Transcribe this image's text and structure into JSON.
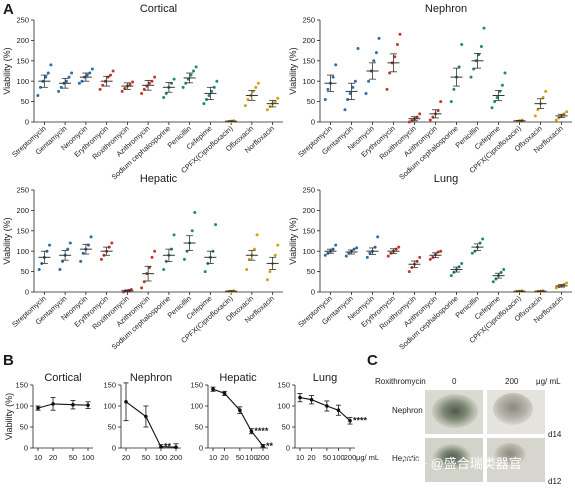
{
  "panels": {
    "a": "A",
    "b": "B",
    "c": "C"
  },
  "drug_colors": [
    "#2c6fa6",
    "#2c6fa6",
    "#2c6fa6",
    "#c0392b",
    "#c0392b",
    "#c0392b",
    "#1f8a7a",
    "#1f8a7a",
    "#1f8a7a",
    "#d4a017",
    "#d4a017",
    "#d4a017"
  ],
  "chart_data": [
    {
      "id": "A-cortical",
      "type": "scatter",
      "title": "Cortical",
      "ylabel": "Viability (%)",
      "ylim": [
        0,
        250
      ],
      "yticks": [
        0,
        50,
        100,
        150,
        200,
        250
      ],
      "categories": [
        "Streptomycin",
        "Gentamycin",
        "Neomycin",
        "Erythromycin",
        "Roxithromycin",
        "Azithromycin",
        "Sodium cephalosporine",
        "Penicillin",
        "Cefepime",
        "CPFX(Ciprofloxacin)",
        "Oflxoxacin",
        "Norfloxacin"
      ],
      "mean": [
        100,
        95,
        110,
        100,
        88,
        90,
        85,
        108,
        70,
        2,
        65,
        45
      ],
      "sem": [
        15,
        12,
        10,
        12,
        8,
        12,
        12,
        12,
        15,
        1,
        12,
        8
      ],
      "points": [
        [
          65,
          85,
          100,
          110,
          120,
          140
        ],
        [
          75,
          85,
          95,
          100,
          110,
          120
        ],
        [
          95,
          100,
          110,
          115,
          120,
          130
        ],
        [
          80,
          90,
          100,
          110,
          115,
          125
        ],
        [
          75,
          82,
          88,
          92,
          98
        ],
        [
          70,
          80,
          88,
          95,
          100,
          110
        ],
        [
          60,
          70,
          85,
          95,
          105
        ],
        [
          85,
          95,
          105,
          115,
          125,
          135
        ],
        [
          45,
          55,
          65,
          75,
          85,
          100
        ],
        [
          1,
          2,
          3
        ],
        [
          40,
          55,
          65,
          75,
          85,
          95
        ],
        [
          30,
          38,
          45,
          50,
          58
        ]
      ]
    },
    {
      "id": "A-nephron",
      "type": "scatter",
      "title": "Nephron",
      "ylabel": "Viability (%)",
      "ylim": [
        0,
        250
      ],
      "yticks": [
        0,
        50,
        100,
        150,
        200,
        250
      ],
      "categories": [
        "Streptomycin",
        "Gentamycin",
        "Neomycin",
        "Erythromycin",
        "Roxithromycin",
        "Azithromycin",
        "Sodium cephalosporine",
        "Penicillin",
        "Cefepime",
        "CPFX(Ciprofloxacin)",
        "Oflxoxacin",
        "Norfloxacin"
      ],
      "mean": [
        95,
        75,
        125,
        145,
        8,
        20,
        110,
        150,
        65,
        3,
        45,
        15
      ],
      "sem": [
        20,
        20,
        20,
        22,
        5,
        10,
        22,
        18,
        12,
        1,
        12,
        4
      ],
      "points": [
        [
          55,
          80,
          95,
          110,
          140
        ],
        [
          30,
          55,
          70,
          85,
          100,
          180
        ],
        [
          70,
          100,
          125,
          150,
          170,
          205
        ],
        [
          80,
          120,
          145,
          160,
          190,
          215
        ],
        [
          0,
          3,
          8,
          12,
          20
        ],
        [
          5,
          12,
          20,
          28,
          50
        ],
        [
          50,
          80,
          110,
          135,
          190
        ],
        [
          110,
          130,
          150,
          165,
          185,
          230
        ],
        [
          35,
          50,
          60,
          75,
          90,
          120
        ],
        [
          1,
          3,
          5
        ],
        [
          15,
          30,
          45,
          60,
          75
        ],
        [
          5,
          10,
          15,
          20,
          25
        ]
      ]
    },
    {
      "id": "A-hepatic",
      "type": "scatter",
      "title": "Hepatic",
      "ylabel": "Viability (%)",
      "ylim": [
        0,
        250
      ],
      "yticks": [
        0,
        50,
        100,
        150,
        200,
        250
      ],
      "categories": [
        "Streptomycin",
        "Gentamycin",
        "Neomycin",
        "Erythromycin",
        "Roxithromycin",
        "Azithromycin",
        "Sodium cephalosporine",
        "Penicillin",
        "Cefepime",
        "CPFX(Ciprofloxacin)",
        "Oflxoxacin",
        "Norfloxacin"
      ],
      "mean": [
        85,
        90,
        105,
        100,
        3,
        45,
        90,
        120,
        85,
        2,
        90,
        70
      ],
      "sem": [
        15,
        12,
        12,
        10,
        2,
        18,
        15,
        18,
        15,
        1,
        12,
        15
      ],
      "points": [
        [
          55,
          70,
          85,
          100,
          115
        ],
        [
          55,
          75,
          90,
          105,
          120
        ],
        [
          75,
          95,
          105,
          115,
          135
        ],
        [
          80,
          90,
          100,
          110,
          120
        ],
        [
          0,
          2,
          4,
          6
        ],
        [
          10,
          25,
          45,
          60,
          85,
          100
        ],
        [
          55,
          75,
          90,
          105,
          140
        ],
        [
          80,
          100,
          120,
          150,
          195
        ],
        [
          50,
          70,
          85,
          100,
          165
        ],
        [
          1,
          2,
          3
        ],
        [
          55,
          80,
          90,
          105,
          140
        ],
        [
          30,
          50,
          70,
          90,
          115
        ]
      ]
    },
    {
      "id": "A-lung",
      "type": "scatter",
      "title": "Lung",
      "ylabel": "Viability (%)",
      "ylim": [
        0,
        250
      ],
      "yticks": [
        0,
        50,
        100,
        150,
        200,
        250
      ],
      "categories": [
        "Streptomycin",
        "Gentamycin",
        "Neomycin",
        "Erythromycin",
        "Roxithromycin",
        "Azithromycin",
        "Sodium cephalosporine",
        "Penicillin",
        "Cefepime",
        "CPFX(Ciprofloxacin)",
        "Oflxoxacin",
        "Norfloxacin"
      ],
      "mean": [
        100,
        98,
        100,
        100,
        68,
        90,
        55,
        110,
        40,
        2,
        2,
        15
      ],
      "sem": [
        5,
        5,
        8,
        6,
        8,
        6,
        6,
        8,
        6,
        1,
        1,
        3
      ],
      "points": [
        [
          90,
          95,
          100,
          105,
          115
        ],
        [
          88,
          95,
          100,
          105,
          108
        ],
        [
          85,
          95,
          100,
          110,
          135
        ],
        [
          88,
          95,
          100,
          105,
          110
        ],
        [
          50,
          60,
          68,
          75,
          85
        ],
        [
          80,
          85,
          92,
          98,
          100
        ],
        [
          40,
          48,
          55,
          62,
          70
        ],
        [
          95,
          100,
          110,
          120,
          130
        ],
        [
          25,
          32,
          40,
          48,
          55
        ],
        [
          1,
          2,
          3
        ],
        [
          1,
          2,
          3
        ],
        [
          10,
          13,
          16,
          19,
          22
        ]
      ]
    },
    {
      "id": "B-cortical",
      "type": "line",
      "title": "Cortical",
      "ylabel": "Viability (%)",
      "x": [
        10,
        20,
        50,
        100
      ],
      "xticks": [
        "10",
        "20",
        "50",
        "100"
      ],
      "xlabel": "",
      "y": [
        95,
        105,
        103,
        102
      ],
      "err": [
        5,
        15,
        10,
        8
      ],
      "ylim": [
        0,
        150
      ],
      "yticks": [
        0,
        50,
        100,
        150
      ],
      "significance": []
    },
    {
      "id": "B-nephron",
      "type": "line",
      "title": "Nephron",
      "ylabel": "",
      "x": [
        20,
        50,
        100,
        200
      ],
      "xticks": [
        "20",
        "50",
        "100",
        "200"
      ],
      "xlabel": "",
      "y": [
        110,
        75,
        3,
        2
      ],
      "err": [
        45,
        25,
        5,
        8
      ],
      "ylim": [
        0,
        150
      ],
      "yticks": [
        0,
        50,
        100,
        150
      ],
      "significance": [
        {
          "index": 2,
          "label": "**"
        }
      ]
    },
    {
      "id": "B-hepatic",
      "type": "line",
      "title": "Hepatic",
      "ylabel": "",
      "x": [
        10,
        20,
        50,
        100,
        200
      ],
      "xticks": [
        "10",
        "20",
        "50",
        "100",
        "200"
      ],
      "xlabel": "",
      "y": [
        140,
        130,
        90,
        40,
        5
      ],
      "err": [
        5,
        5,
        8,
        6,
        3
      ],
      "ylim": [
        0,
        150
      ],
      "yticks": [
        0,
        50,
        100,
        150
      ],
      "significance": [
        {
          "index": 3,
          "label": "****"
        },
        {
          "index": 4,
          "label": "**"
        }
      ]
    },
    {
      "id": "B-lung",
      "type": "line",
      "title": "Lung",
      "ylabel": "",
      "x": [
        10,
        20,
        50,
        100,
        200
      ],
      "xticks": [
        "10",
        "20",
        "50",
        "100",
        "200"
      ],
      "xlabel": "μg/ mL",
      "y": [
        120,
        115,
        100,
        90,
        65
      ],
      "err": [
        10,
        10,
        12,
        12,
        8
      ],
      "ylim": [
        0,
        150
      ],
      "yticks": [
        0,
        50,
        100,
        150
      ],
      "significance": [
        {
          "index": 4,
          "label": "****"
        }
      ]
    }
  ],
  "panel_c": {
    "drug": "Roxithromycin",
    "conc_0": "0",
    "conc_200": "200",
    "unit": "μg/ mL",
    "row1": "Nephron",
    "row2": "Hepatic",
    "day1": "d14",
    "day2": "d12",
    "watermark": "知乎 @盛合瑞类器官"
  }
}
